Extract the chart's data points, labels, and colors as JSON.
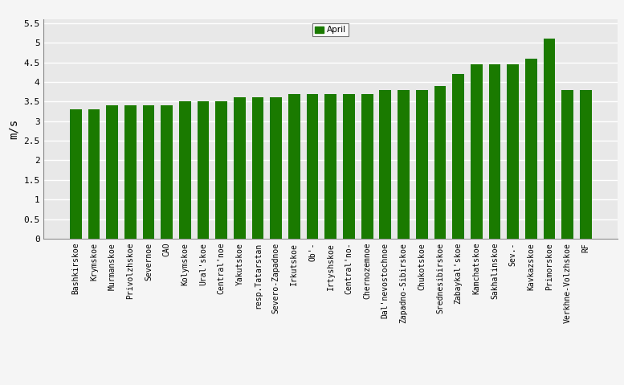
{
  "categories": [
    "Bashkirskoe",
    "Krymskoe",
    "Murmanskoe",
    "Privolzhskoe",
    "Severnoe",
    "CAO",
    "Kolymskoe",
    "Ural'skoe",
    "Central'noe",
    "Yakutskoe",
    "resp.Tatarstan",
    "Severo-Zapadnoe",
    "Irkutskoe",
    "Ob'-",
    "Irtyshskoe",
    "Central'no-",
    "Chernozemnoe",
    "Dal'nevostochnoe",
    "Zapadno-Sibirskoe",
    "Chukotskoe",
    "Srednesibirskoe",
    "Zabaykal'skoe",
    "Kamchatskoe",
    "Sakhalinskoe",
    "Sev.-",
    "Kavkazskoe",
    "Primorskoe",
    "Verkhne-Volzhskoe",
    "RF"
  ],
  "values": [
    3.3,
    3.3,
    3.4,
    3.4,
    3.4,
    3.4,
    3.5,
    3.5,
    3.5,
    3.6,
    3.6,
    3.6,
    3.7,
    3.7,
    3.7,
    3.7,
    3.7,
    3.8,
    3.8,
    3.8,
    3.9,
    4.2,
    4.45,
    4.45,
    4.45,
    4.6,
    5.1,
    3.8,
    3.8
  ],
  "bar_color": "#1a7a00",
  "legend_label": "April",
  "legend_color": "#1a7a00",
  "ylabel": "m/s",
  "yticks": [
    0,
    0.5,
    1.0,
    1.5,
    2.0,
    2.5,
    3.0,
    3.5,
    4.0,
    4.5,
    5.0,
    5.5
  ],
  "ylim": [
    0,
    5.6
  ],
  "plot_bg_color": "#e8e8e8",
  "fig_bg_color": "#f5f5f5",
  "grid_color": "#ffffff"
}
